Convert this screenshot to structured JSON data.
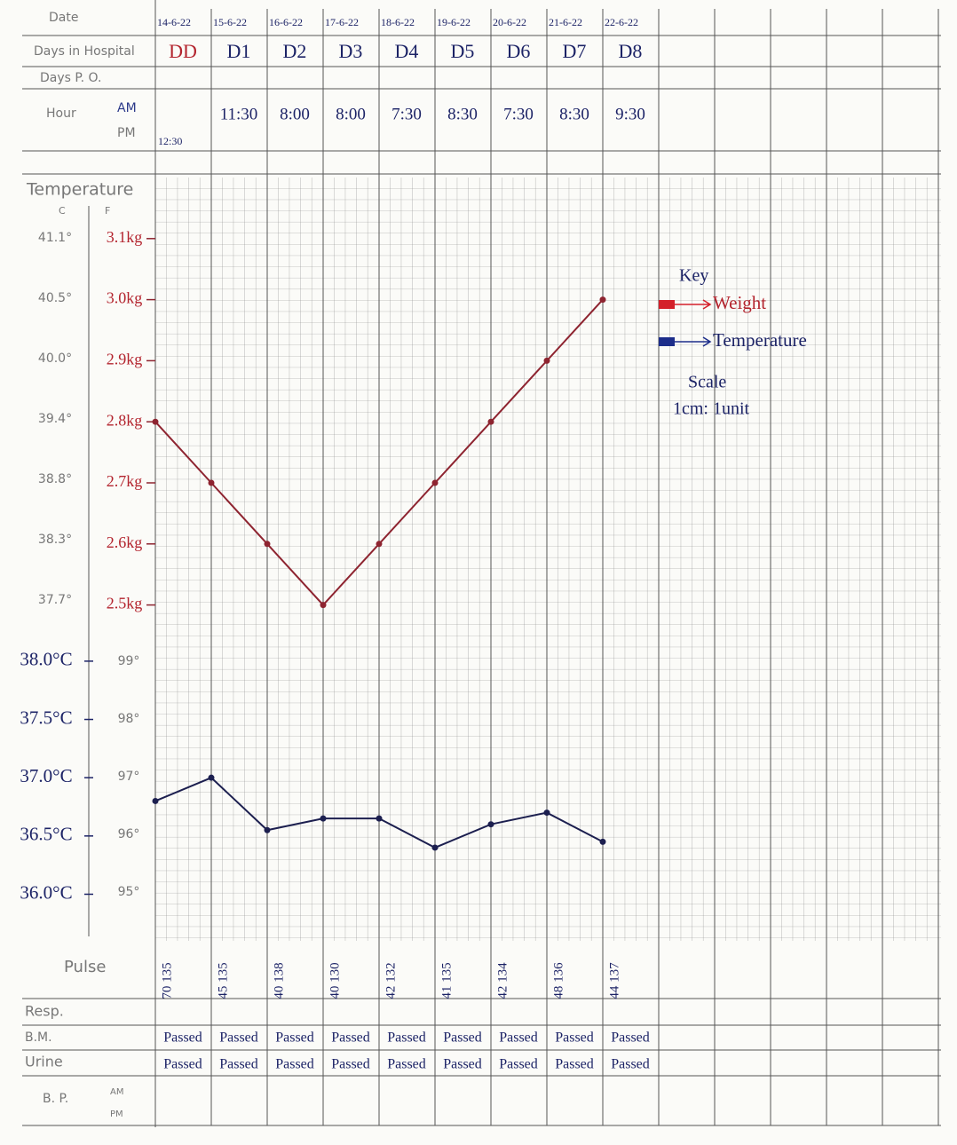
{
  "form": {
    "labels": {
      "date": "Date",
      "days_in_hospital": "Days in Hospital",
      "days_po": "Days P. O.",
      "hour": "Hour",
      "am": "AM",
      "pm": "PM",
      "temperature": "Temperature",
      "c": "C",
      "f": "F",
      "pulse": "Pulse",
      "resp": "Resp.",
      "bm": "B.M.",
      "urine": "Urine",
      "bp": "B. P.",
      "bp_am": "AM",
      "bp_pm": "PM"
    },
    "days": [
      "DD",
      "D1",
      "D2",
      "D3",
      "D4",
      "D5",
      "D6",
      "D7",
      "D8"
    ],
    "pm_hours": [
      "12:30"
    ],
    "am_hours": [
      "11:30",
      "8:00",
      "8:00",
      "7:30",
      "8:30",
      "7:30",
      "8:30",
      "9:30"
    ],
    "celsius_scale": [
      "41.1°",
      "40.5°",
      "40.0°",
      "39.4°",
      "38.8°",
      "38.3°",
      "37.7°"
    ],
    "fahrenheit_scale": [
      "99°",
      "98°",
      "97°",
      "96°",
      "95°"
    ],
    "pulse_resp": [
      "70 135",
      "45 135",
      "40 138",
      "40 130",
      "42 132",
      "41 135",
      "42 134",
      "48 136",
      "44 137"
    ],
    "bm": [
      "Passed",
      "Passed",
      "Passed",
      "Passed",
      "Passed",
      "Passed",
      "Passed",
      "Passed",
      "Passed"
    ],
    "urine": [
      "Passed",
      "Passed",
      "Passed",
      "Passed",
      "Passed",
      "Passed",
      "Passed",
      "Passed",
      "Passed"
    ]
  },
  "chart_data": {
    "type": "line",
    "categories": [
      "14-6-22",
      "15-6-22",
      "16-6-22",
      "17-6-22",
      "18-6-22",
      "19-6-22",
      "20-6-22",
      "21-6-22",
      "22-6-22"
    ],
    "series": [
      {
        "name": "Weight",
        "color": "#8e2430",
        "values": [
          2.8,
          2.7,
          2.6,
          2.5,
          2.6,
          2.7,
          2.8,
          2.9,
          3.0
        ]
      },
      {
        "name": "Temperature",
        "color": "#1c1f4f",
        "axis": "y2",
        "values": [
          36.8,
          37.0,
          36.55,
          36.65,
          36.65,
          36.4,
          36.6,
          36.7,
          36.45
        ]
      }
    ],
    "ylim": [
      1.95,
      3.2
    ],
    "yticks": [
      {
        "value": 3.1,
        "label": "3.1kg"
      },
      {
        "value": 3.0,
        "label": "3.0kg"
      },
      {
        "value": 2.9,
        "label": "2.9kg"
      },
      {
        "value": 2.8,
        "label": "2.8kg"
      },
      {
        "value": 2.7,
        "label": "2.7kg"
      },
      {
        "value": 2.6,
        "label": "2.6kg"
      },
      {
        "value": 2.5,
        "label": "2.5kg"
      }
    ],
    "y2lim": [
      35.6,
      42.15
    ],
    "y2ticks": [
      {
        "value": 38.0,
        "label": "38.0°C"
      },
      {
        "value": 37.5,
        "label": "37.5°C"
      },
      {
        "value": 37.0,
        "label": "37.0°C"
      },
      {
        "value": 36.5,
        "label": "36.5°C"
      },
      {
        "value": 36.0,
        "label": "36.0°C"
      }
    ],
    "legend_title": "Key",
    "annotations": [
      "Scale",
      "1cm: 1unit"
    ]
  }
}
